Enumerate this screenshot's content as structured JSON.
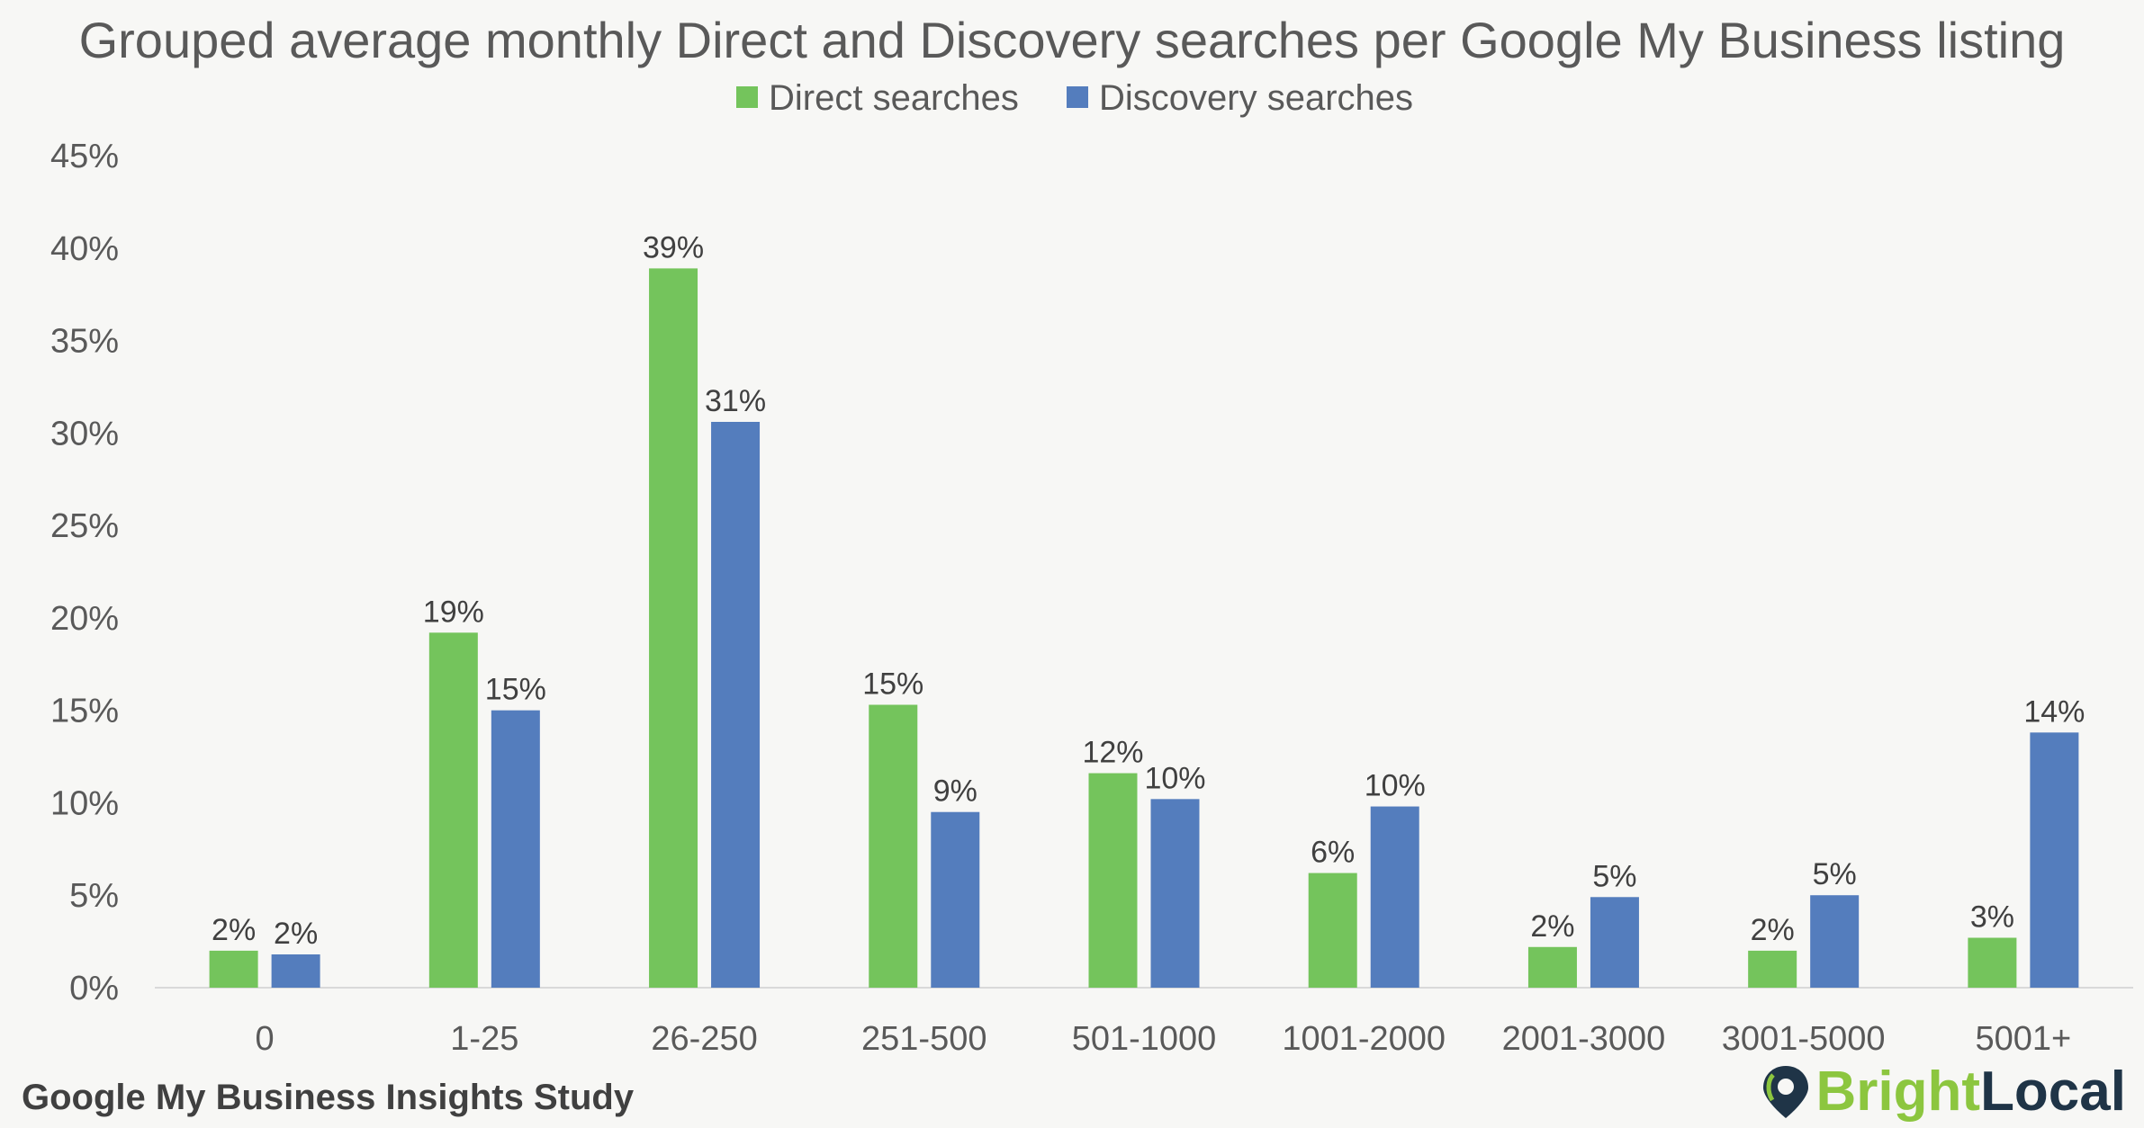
{
  "chart_data": {
    "type": "bar",
    "title": "Grouped average monthly Direct and Discovery searches per Google My Business listing",
    "categories": [
      "0",
      "1-25",
      "26-250",
      "251-500",
      "501-1000",
      "1001-2000",
      "2001-3000",
      "3001-5000",
      "5001+"
    ],
    "series": [
      {
        "name": "Direct searches",
        "color": "#74c45c",
        "values": [
          2.0,
          19.2,
          38.9,
          15.3,
          11.6,
          6.2,
          2.2,
          2.0,
          2.7
        ],
        "labels": [
          "2%",
          "19%",
          "39%",
          "15%",
          "12%",
          "6%",
          "2%",
          "2%",
          "3%"
        ]
      },
      {
        "name": "Discovery searches",
        "color": "#547dbd",
        "values": [
          1.8,
          15.0,
          30.6,
          9.5,
          10.2,
          9.8,
          4.9,
          5.0,
          13.8
        ],
        "labels": [
          "2%",
          "15%",
          "31%",
          "9%",
          "10%",
          "10%",
          "5%",
          "5%",
          "14%"
        ]
      }
    ],
    "yticks": [
      "0%",
      "5%",
      "10%",
      "15%",
      "20%",
      "25%",
      "30%",
      "35%",
      "40%",
      "45%"
    ],
    "ylim": [
      0,
      45
    ],
    "grid": false,
    "legend_position": "top-center"
  },
  "footer": {
    "study_label": "Google My Business Insights Study",
    "brand_part1": "Bright",
    "brand_part2": "Local",
    "brand_icon": "map-pin-icon"
  }
}
